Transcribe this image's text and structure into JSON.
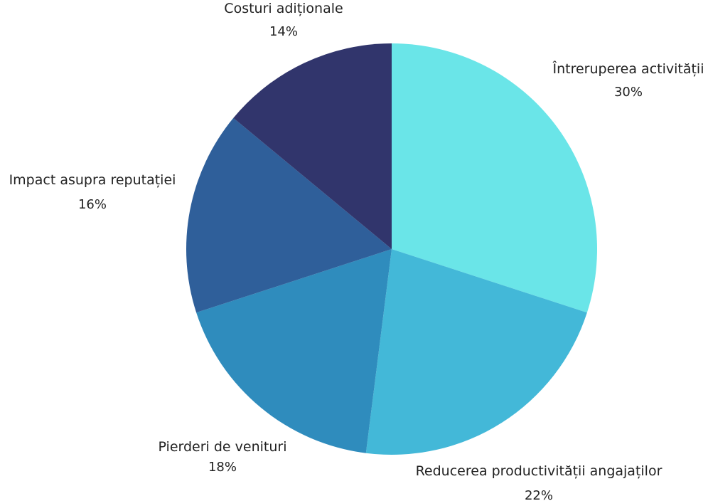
{
  "chart_data": {
    "type": "pie",
    "start_angle_deg": 0,
    "direction": "clockwise",
    "grid": false,
    "legend": "none",
    "slices": [
      {
        "name": "Întreruperea activității",
        "pct_label": "30%",
        "value": 30,
        "color": "#6ae5e8"
      },
      {
        "name": "Reducerea productivității angajaților",
        "pct_label": "22%",
        "value": 22,
        "color": "#43b8d8"
      },
      {
        "name": "Pierderi de venituri",
        "pct_label": "18%",
        "value": 18,
        "color": "#2f8cbd"
      },
      {
        "name": "Impact asupra reputației",
        "pct_label": "16%",
        "value": 16,
        "color": "#2f5f9a"
      },
      {
        "name": "Costuri adiționale",
        "pct_label": "14%",
        "value": 14,
        "color": "#31356c"
      }
    ]
  }
}
